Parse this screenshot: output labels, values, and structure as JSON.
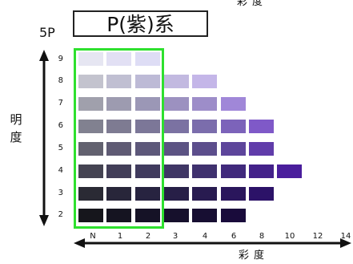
{
  "header": {
    "top_cut_label": "彩度",
    "hue_code": "5P",
    "title": "P(紫)系"
  },
  "axes": {
    "value_label": [
      "明",
      "度"
    ],
    "value_ticks": [
      "9",
      "8",
      "7",
      "6",
      "5",
      "4",
      "3",
      "2"
    ],
    "chroma_ticks": [
      "N",
      "1",
      "2",
      "3",
      "4",
      "6",
      "8",
      "10",
      "12",
      "14"
    ],
    "chroma_label": "彩度"
  },
  "colors": {
    "selection": "#2ee02e",
    "axis": "#111111"
  },
  "chips": [
    {
      "value": 9,
      "chroma": "N",
      "color": "#e6e6f2"
    },
    {
      "value": 9,
      "chroma": "1",
      "color": "#e2e0f4"
    },
    {
      "value": 9,
      "chroma": "2",
      "color": "#deddf5"
    },
    {
      "value": 8,
      "chroma": "N",
      "color": "#c3c3ce"
    },
    {
      "value": 8,
      "chroma": "1",
      "color": "#c0bfd2"
    },
    {
      "value": 8,
      "chroma": "2",
      "color": "#bdbad6"
    },
    {
      "value": 8,
      "chroma": "3",
      "color": "#c2b9e0"
    },
    {
      "value": 8,
      "chroma": "4",
      "color": "#c4b6e8"
    },
    {
      "value": 7,
      "chroma": "N",
      "color": "#a0a0ac"
    },
    {
      "value": 7,
      "chroma": "1",
      "color": "#9d9bb0"
    },
    {
      "value": 7,
      "chroma": "2",
      "color": "#9b97b6"
    },
    {
      "value": 7,
      "chroma": "3",
      "color": "#9c91c0"
    },
    {
      "value": 7,
      "chroma": "4",
      "color": "#9d8dc9"
    },
    {
      "value": 7,
      "chroma": "6",
      "color": "#a087d8"
    },
    {
      "value": 6,
      "chroma": "N",
      "color": "#818190"
    },
    {
      "value": 6,
      "chroma": "1",
      "color": "#7e7b92"
    },
    {
      "value": 6,
      "chroma": "2",
      "color": "#7c7798"
    },
    {
      "value": 6,
      "chroma": "3",
      "color": "#7b72a2"
    },
    {
      "value": 6,
      "chroma": "4",
      "color": "#7b6dac"
    },
    {
      "value": 6,
      "chroma": "6",
      "color": "#7c63ba"
    },
    {
      "value": 6,
      "chroma": "8",
      "color": "#7f59c8"
    },
    {
      "value": 5,
      "chroma": "N",
      "color": "#62616f"
    },
    {
      "value": 5,
      "chroma": "1",
      "color": "#5f5b74"
    },
    {
      "value": 5,
      "chroma": "2",
      "color": "#5d587a"
    },
    {
      "value": 5,
      "chroma": "3",
      "color": "#5c5383"
    },
    {
      "value": 5,
      "chroma": "4",
      "color": "#5c4e8c"
    },
    {
      "value": 5,
      "chroma": "6",
      "color": "#5d459b"
    },
    {
      "value": 5,
      "chroma": "8",
      "color": "#603caa"
    },
    {
      "value": 4,
      "chroma": "N",
      "color": "#444352"
    },
    {
      "value": 4,
      "chroma": "1",
      "color": "#423e58"
    },
    {
      "value": 4,
      "chroma": "2",
      "color": "#403b5e"
    },
    {
      "value": 4,
      "chroma": "3",
      "color": "#3f3665"
    },
    {
      "value": 4,
      "chroma": "4",
      "color": "#3f316e"
    },
    {
      "value": 4,
      "chroma": "6",
      "color": "#40297c"
    },
    {
      "value": 4,
      "chroma": "8",
      "color": "#43218a"
    },
    {
      "value": 4,
      "chroma": "10",
      "color": "#4a1e9c"
    },
    {
      "value": 3,
      "chroma": "N",
      "color": "#2a2a34"
    },
    {
      "value": 3,
      "chroma": "1",
      "color": "#28263a"
    },
    {
      "value": 3,
      "chroma": "2",
      "color": "#272340"
    },
    {
      "value": 3,
      "chroma": "3",
      "color": "#271f47"
    },
    {
      "value": 3,
      "chroma": "4",
      "color": "#281b50"
    },
    {
      "value": 3,
      "chroma": "6",
      "color": "#2a165c"
    },
    {
      "value": 3,
      "chroma": "8",
      "color": "#2c1268"
    },
    {
      "value": 2,
      "chroma": "N",
      "color": "#16161c"
    },
    {
      "value": 2,
      "chroma": "1",
      "color": "#151421"
    },
    {
      "value": 2,
      "chroma": "2",
      "color": "#151226"
    },
    {
      "value": 2,
      "chroma": "3",
      "color": "#16102c"
    },
    {
      "value": 2,
      "chroma": "4",
      "color": "#170e32"
    },
    {
      "value": 2,
      "chroma": "6",
      "color": "#190b3b"
    }
  ]
}
